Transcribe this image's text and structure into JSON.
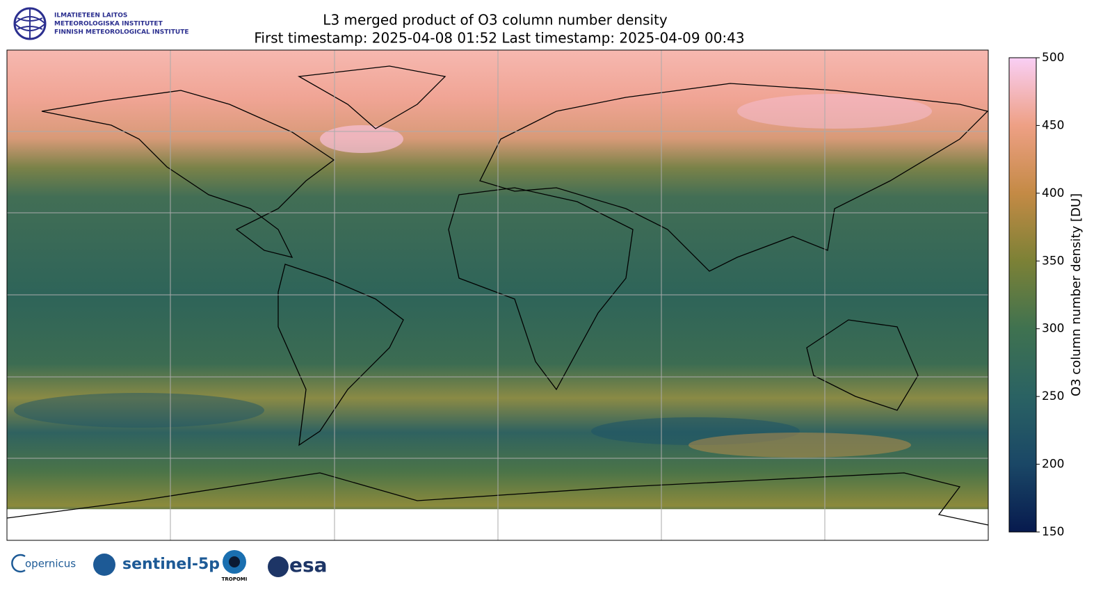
{
  "header": {
    "institute": [
      "ILMATIETEEN LAITOS",
      "METEOROLOGISKA INSTITUTET",
      "FINNISH METEOROLOGICAL INSTITUTE"
    ]
  },
  "map": {
    "title": [
      "L3 merged product of O3 column number density",
      "First timestamp: 2025-04-08 01:52   Last timestamp: 2025-04-09 00:43"
    ],
    "colorbar": {
      "label": "O3 column number density [DU]",
      "lim": [
        150,
        500
      ],
      "ticks": [
        150,
        200,
        250,
        300,
        350,
        400,
        450,
        500
      ],
      "colors": [
        "#071a4e",
        "#1a4766",
        "#2a6263",
        "#3f7250",
        "#7c8136",
        "#c48a45",
        "#eea085",
        "#f9cff5"
      ]
    }
  },
  "footer": {
    "logos": [
      "opernicus",
      "sentinel-5p",
      "TROPOMI",
      "esa"
    ]
  }
}
